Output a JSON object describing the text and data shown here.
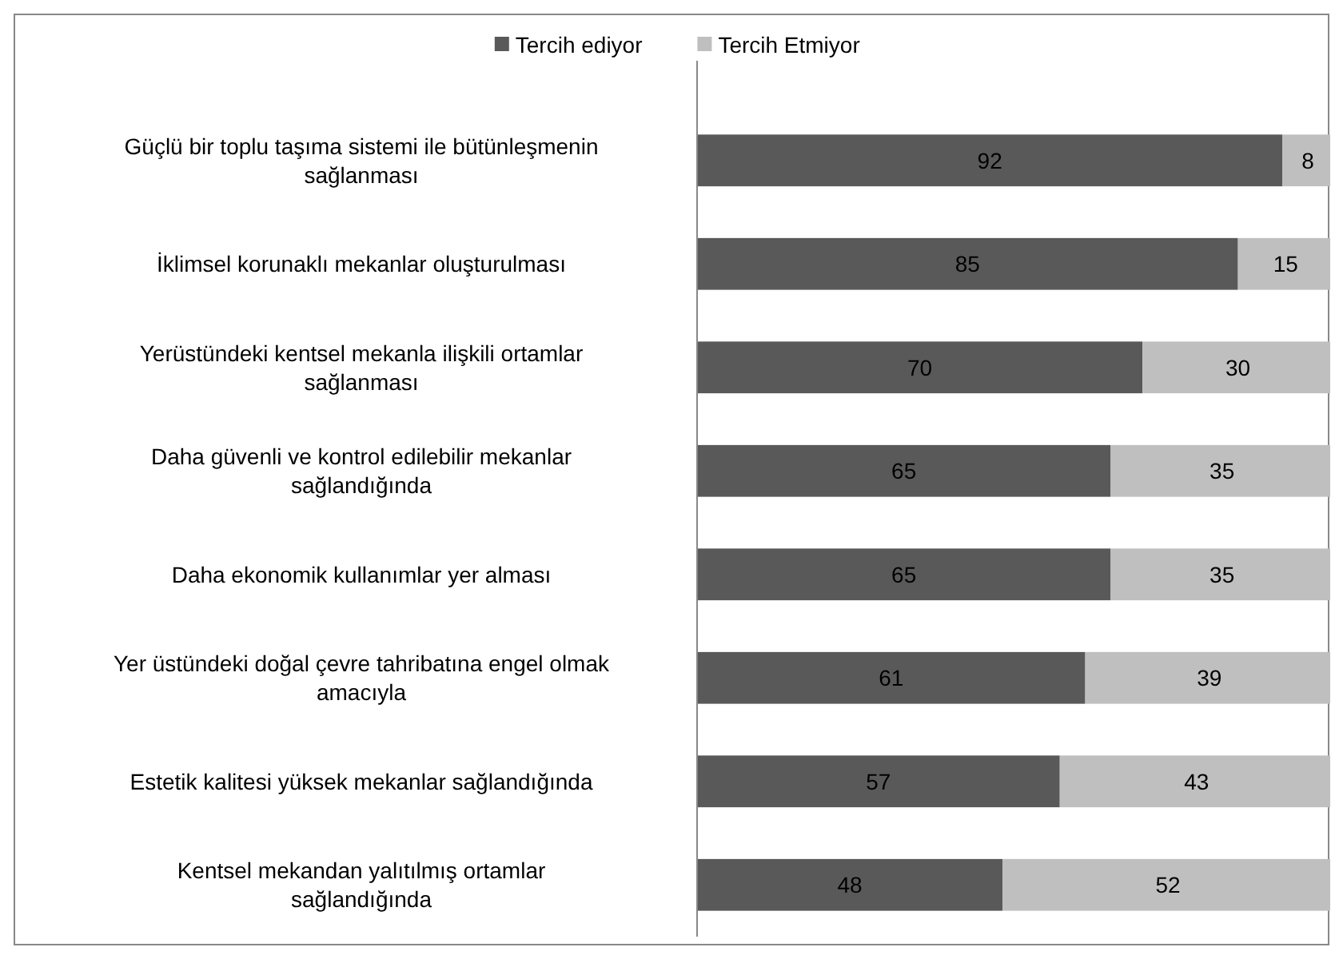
{
  "chart_data": {
    "type": "bar",
    "orientation": "horizontal",
    "stacked": true,
    "data_labels": true,
    "legend": "top",
    "xlim": [
      0,
      100
    ],
    "categories": [
      "Güçlü bir toplu taşıma sistemi ile bütünleşmenin sağlanması",
      "İklimsel korunaklı mekanlar oluşturulması",
      "Yerüstündeki kentsel mekanla ilişkili ortamlar sağlanması",
      "Daha güvenli ve kontrol edilebilir mekanlar sağlandığında",
      "Daha ekonomik kullanımlar yer alması",
      "Yer üstündeki doğal çevre tahribatına engel olmak amacıyla",
      "Estetik kalitesi yüksek mekanlar sağlandığında",
      "Kentsel mekandan yalıtılmış ortamlar sağlandığında"
    ],
    "series": [
      {
        "name": "Tercih ediyor",
        "color": "#595959",
        "values": [
          92,
          85,
          70,
          65,
          65,
          61,
          57,
          48
        ]
      },
      {
        "name": "Tercih Etmiyor",
        "color": "#bfbfbf",
        "values": [
          8,
          15,
          30,
          35,
          35,
          39,
          43,
          52
        ]
      }
    ]
  }
}
